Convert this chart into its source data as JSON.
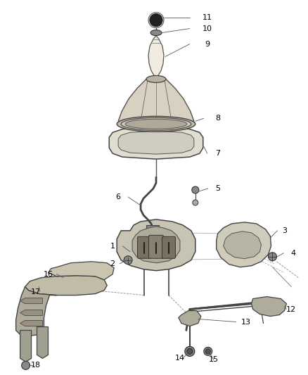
{
  "background_color": "#ffffff",
  "line_color": "#333333",
  "label_color": "#000000",
  "label_fontsize": 8,
  "figsize": [
    4.38,
    5.33
  ],
  "dpi": 100,
  "lw": 0.9
}
